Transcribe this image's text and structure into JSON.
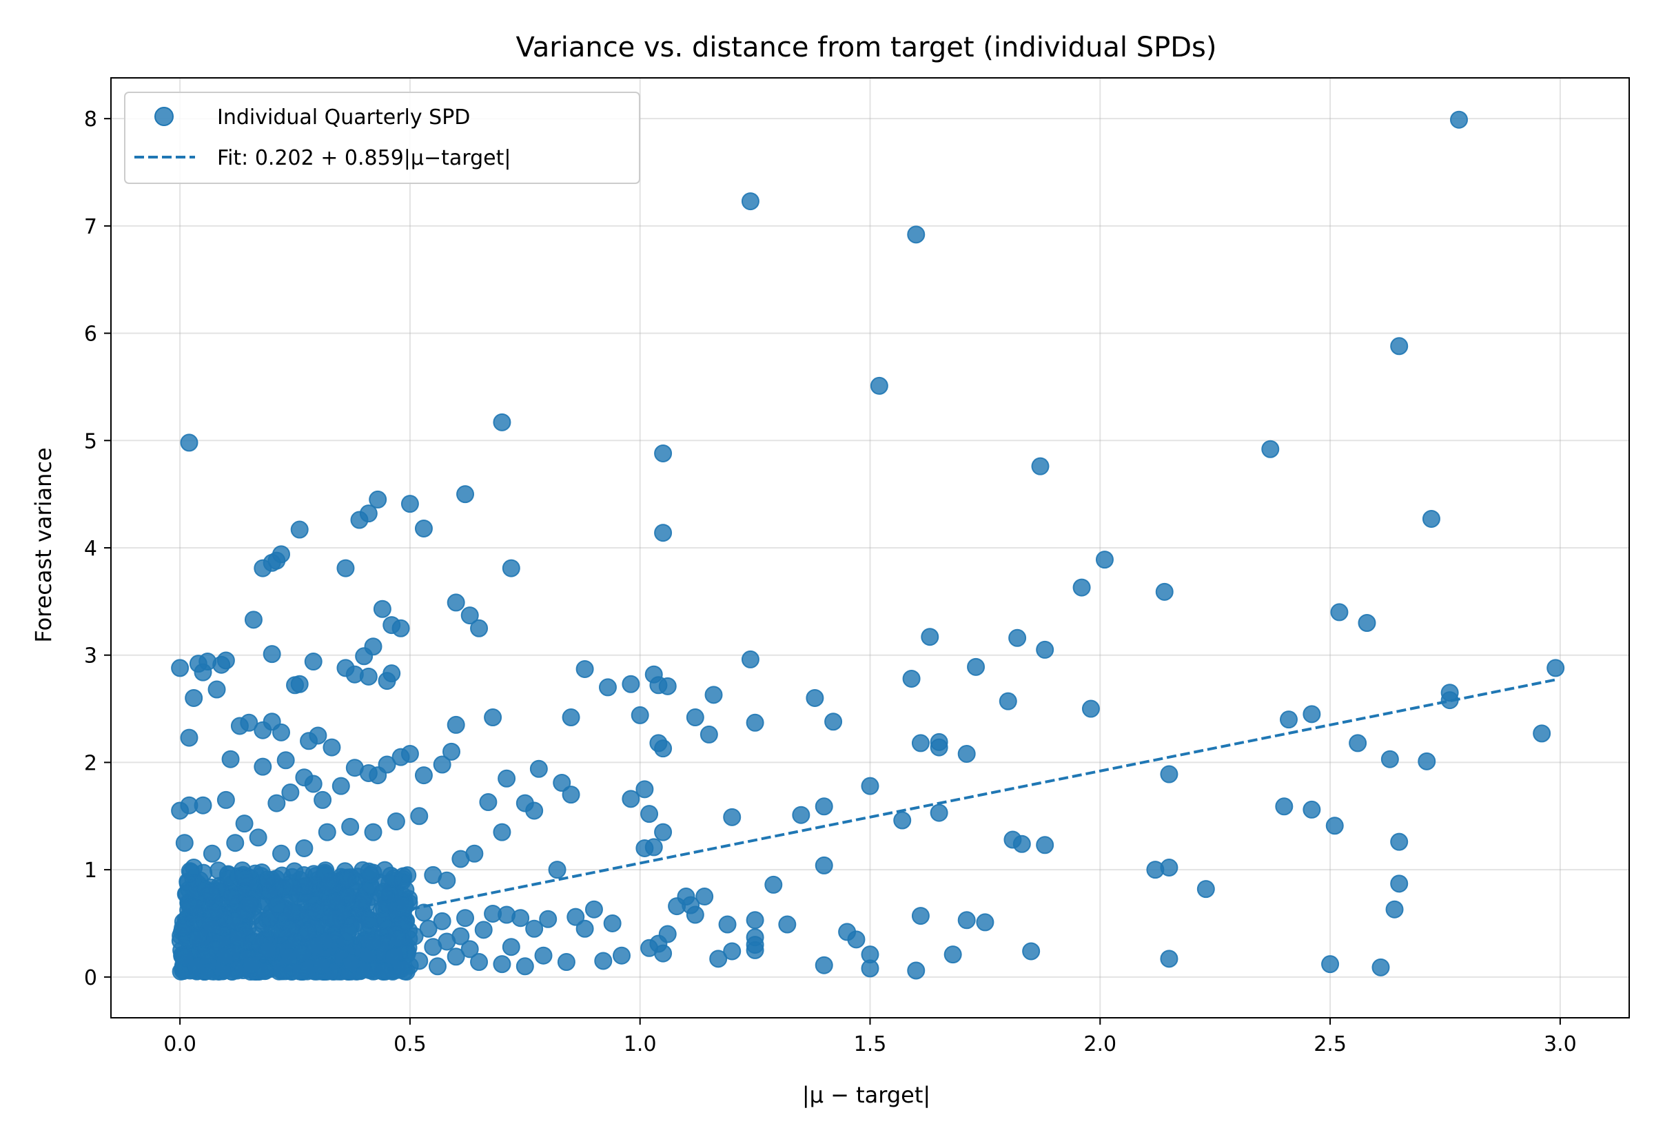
{
  "chart_data": {
    "type": "scatter",
    "title": "Variance vs. distance from target (individual SPDs)",
    "xlabel": "|μ − target|",
    "ylabel": "Forecast variance",
    "xlim": [
      -0.15,
      3.15
    ],
    "ylim": [
      -0.38,
      8.38
    ],
    "xticks": [
      0.0,
      0.5,
      1.0,
      1.5,
      2.0,
      2.5,
      3.0
    ],
    "xtick_labels": [
      "0.0",
      "0.5",
      "1.0",
      "1.5",
      "2.0",
      "2.5",
      "3.0"
    ],
    "yticks": [
      0,
      1,
      2,
      3,
      4,
      5,
      6,
      7,
      8
    ],
    "ytick_labels": [
      "0",
      "1",
      "2",
      "3",
      "4",
      "5",
      "6",
      "7",
      "8"
    ],
    "grid": true,
    "legend_position": "top-left",
    "point_color": "#1f77b4",
    "series": [
      {
        "name": "Individual Quarterly SPD",
        "kind": "scatter",
        "points": [
          [
            0.02,
            4.98
          ],
          [
            0.0,
            2.88
          ],
          [
            0.03,
            2.6
          ],
          [
            0.04,
            2.92
          ],
          [
            0.05,
            2.84
          ],
          [
            0.06,
            2.94
          ],
          [
            0.09,
            2.91
          ],
          [
            0.1,
            2.95
          ],
          [
            0.08,
            2.68
          ],
          [
            0.13,
            2.34
          ],
          [
            0.11,
            2.03
          ],
          [
            0.02,
            2.23
          ],
          [
            0.15,
            2.37
          ],
          [
            0.18,
            2.3
          ],
          [
            0.2,
            2.38
          ],
          [
            0.22,
            2.28
          ],
          [
            0.23,
            2.02
          ],
          [
            0.26,
            2.73
          ],
          [
            0.25,
            2.72
          ],
          [
            0.29,
            2.94
          ],
          [
            0.28,
            2.2
          ],
          [
            0.3,
            2.25
          ],
          [
            0.33,
            2.14
          ],
          [
            0.36,
            2.88
          ],
          [
            0.18,
            3.81
          ],
          [
            0.2,
            3.86
          ],
          [
            0.21,
            3.88
          ],
          [
            0.22,
            3.94
          ],
          [
            0.26,
            4.17
          ],
          [
            0.16,
            3.33
          ],
          [
            0.2,
            3.01
          ],
          [
            0.38,
            2.82
          ],
          [
            0.41,
            2.8
          ],
          [
            0.4,
            2.99
          ],
          [
            0.42,
            3.08
          ],
          [
            0.44,
            3.43
          ],
          [
            0.45,
            2.76
          ],
          [
            0.46,
            2.83
          ],
          [
            0.46,
            3.28
          ],
          [
            0.48,
            3.25
          ],
          [
            0.36,
            3.81
          ],
          [
            0.39,
            4.26
          ],
          [
            0.41,
            4.32
          ],
          [
            0.43,
            4.45
          ],
          [
            0.5,
            4.41
          ],
          [
            0.53,
            4.18
          ],
          [
            0.6,
            3.49
          ],
          [
            0.62,
            4.5
          ],
          [
            0.63,
            3.37
          ],
          [
            0.65,
            3.25
          ],
          [
            0.7,
            5.17
          ],
          [
            0.72,
            3.81
          ],
          [
            0.68,
            2.42
          ],
          [
            0.6,
            2.35
          ],
          [
            0.59,
            2.1
          ],
          [
            0.57,
            1.98
          ],
          [
            0.53,
            1.88
          ],
          [
            0.5,
            2.08
          ],
          [
            0.48,
            2.05
          ],
          [
            0.45,
            1.98
          ],
          [
            0.43,
            1.88
          ],
          [
            0.41,
            1.9
          ],
          [
            0.38,
            1.95
          ],
          [
            0.35,
            1.78
          ],
          [
            0.31,
            1.65
          ],
          [
            0.29,
            1.8
          ],
          [
            0.27,
            1.86
          ],
          [
            0.24,
            1.72
          ],
          [
            0.21,
            1.62
          ],
          [
            0.18,
            1.96
          ],
          [
            0.14,
            1.43
          ],
          [
            0.1,
            1.65
          ],
          [
            0.05,
            1.6
          ],
          [
            0.02,
            1.6
          ],
          [
            0.0,
            1.55
          ],
          [
            0.01,
            1.25
          ],
          [
            0.03,
            1.02
          ],
          [
            0.07,
            1.15
          ],
          [
            0.12,
            1.25
          ],
          [
            0.17,
            1.3
          ],
          [
            0.22,
            1.15
          ],
          [
            0.27,
            1.2
          ],
          [
            0.32,
            1.35
          ],
          [
            0.37,
            1.4
          ],
          [
            0.42,
            1.35
          ],
          [
            0.47,
            1.45
          ],
          [
            0.52,
            1.5
          ],
          [
            0.55,
            0.95
          ],
          [
            0.58,
            0.9
          ],
          [
            0.61,
            1.1
          ],
          [
            0.64,
            1.15
          ],
          [
            0.67,
            1.63
          ],
          [
            0.7,
            1.35
          ],
          [
            0.71,
            1.85
          ],
          [
            0.75,
            1.62
          ],
          [
            0.77,
            1.55
          ],
          [
            0.78,
            1.94
          ],
          [
            0.83,
            1.81
          ],
          [
            0.85,
            1.7
          ],
          [
            0.85,
            2.42
          ],
          [
            0.88,
            2.87
          ],
          [
            0.93,
            2.7
          ],
          [
            0.98,
            2.73
          ],
          [
            0.98,
            1.66
          ],
          [
            1.0,
            2.44
          ],
          [
            1.01,
            1.75
          ],
          [
            1.02,
            1.52
          ],
          [
            1.03,
            2.82
          ],
          [
            1.04,
            2.72
          ],
          [
            1.04,
            2.18
          ],
          [
            1.05,
            2.13
          ],
          [
            1.06,
            2.71
          ],
          [
            1.05,
            4.14
          ],
          [
            1.05,
            4.88
          ],
          [
            1.12,
            2.42
          ],
          [
            1.15,
            2.26
          ],
          [
            1.16,
            2.63
          ],
          [
            1.2,
            1.49
          ],
          [
            1.24,
            2.96
          ],
          [
            1.25,
            2.37
          ],
          [
            1.24,
            7.23
          ],
          [
            1.35,
            1.51
          ],
          [
            1.38,
            2.6
          ],
          [
            1.4,
            1.59
          ],
          [
            1.42,
            2.38
          ],
          [
            1.5,
            1.78
          ],
          [
            1.52,
            5.51
          ],
          [
            1.57,
            1.46
          ],
          [
            1.59,
            2.78
          ],
          [
            1.6,
            6.92
          ],
          [
            1.61,
            2.18
          ],
          [
            1.63,
            3.17
          ],
          [
            1.65,
            2.19
          ],
          [
            1.65,
            2.14
          ],
          [
            1.65,
            1.53
          ],
          [
            1.71,
            2.08
          ],
          [
            1.73,
            2.89
          ],
          [
            1.8,
            2.57
          ],
          [
            1.82,
            3.16
          ],
          [
            1.87,
            4.76
          ],
          [
            1.88,
            3.05
          ],
          [
            1.96,
            3.63
          ],
          [
            1.98,
            2.5
          ],
          [
            2.01,
            3.89
          ],
          [
            2.14,
            3.59
          ],
          [
            2.37,
            4.92
          ],
          [
            2.41,
            2.4
          ],
          [
            2.46,
            2.45
          ],
          [
            2.52,
            3.4
          ],
          [
            2.56,
            2.18
          ],
          [
            2.58,
            3.3
          ],
          [
            2.63,
            2.03
          ],
          [
            2.65,
            5.88
          ],
          [
            2.71,
            2.01
          ],
          [
            2.72,
            4.27
          ],
          [
            2.76,
            2.65
          ],
          [
            2.76,
            2.58
          ],
          [
            2.78,
            7.99
          ],
          [
            2.96,
            2.27
          ],
          [
            2.99,
            2.88
          ],
          [
            2.15,
            1.89
          ],
          [
            2.4,
            1.59
          ],
          [
            2.46,
            1.56
          ],
          [
            2.51,
            1.41
          ],
          [
            2.65,
            1.26
          ],
          [
            2.65,
            0.87
          ],
          [
            2.64,
            0.63
          ],
          [
            2.5,
            0.12
          ],
          [
            2.61,
            0.09
          ],
          [
            2.23,
            0.82
          ],
          [
            2.15,
            1.02
          ],
          [
            2.12,
            1.0
          ],
          [
            2.15,
            0.17
          ],
          [
            1.85,
            0.24
          ],
          [
            1.81,
            1.28
          ],
          [
            1.83,
            1.24
          ],
          [
            1.88,
            1.23
          ],
          [
            1.71,
            0.53
          ],
          [
            1.75,
            0.51
          ],
          [
            1.68,
            0.21
          ],
          [
            1.6,
            0.06
          ],
          [
            1.61,
            0.57
          ],
          [
            1.5,
            0.21
          ],
          [
            1.5,
            0.08
          ],
          [
            1.45,
            0.42
          ],
          [
            1.47,
            0.35
          ],
          [
            1.4,
            1.04
          ],
          [
            1.4,
            0.11
          ],
          [
            1.32,
            0.49
          ],
          [
            1.29,
            0.86
          ],
          [
            1.25,
            0.53
          ],
          [
            1.25,
            0.37
          ],
          [
            1.25,
            0.3
          ],
          [
            1.25,
            0.25
          ],
          [
            1.2,
            0.24
          ],
          [
            1.19,
            0.49
          ],
          [
            1.17,
            0.17
          ],
          [
            1.14,
            0.75
          ],
          [
            1.12,
            0.58
          ],
          [
            1.11,
            0.67
          ],
          [
            1.1,
            0.75
          ],
          [
            1.08,
            0.66
          ],
          [
            1.06,
            0.4
          ],
          [
            1.05,
            0.22
          ],
          [
            1.04,
            0.31
          ],
          [
            1.02,
            0.27
          ],
          [
            1.01,
            1.2
          ],
          [
            1.03,
            1.21
          ],
          [
            1.05,
            1.35
          ],
          [
            0.96,
            0.2
          ],
          [
            0.94,
            0.5
          ],
          [
            0.92,
            0.15
          ],
          [
            0.9,
            0.63
          ],
          [
            0.88,
            0.45
          ],
          [
            0.86,
            0.56
          ],
          [
            0.84,
            0.14
          ],
          [
            0.82,
            1.0
          ],
          [
            0.8,
            0.54
          ],
          [
            0.79,
            0.2
          ],
          [
            0.77,
            0.45
          ],
          [
            0.75,
            0.1
          ],
          [
            0.74,
            0.55
          ],
          [
            0.72,
            0.28
          ],
          [
            0.71,
            0.58
          ],
          [
            0.7,
            0.12
          ],
          [
            0.68,
            0.59
          ],
          [
            0.66,
            0.44
          ],
          [
            0.65,
            0.14
          ],
          [
            0.63,
            0.26
          ],
          [
            0.62,
            0.55
          ],
          [
            0.61,
            0.38
          ],
          [
            0.6,
            0.19
          ],
          [
            0.58,
            0.33
          ],
          [
            0.57,
            0.52
          ],
          [
            0.56,
            0.1
          ],
          [
            0.55,
            0.28
          ],
          [
            0.54,
            0.45
          ],
          [
            0.53,
            0.6
          ],
          [
            0.52,
            0.15
          ],
          [
            0.51,
            0.38
          ]
        ]
      },
      {
        "name": "Fit: 0.202 + 0.859|μ−target|",
        "kind": "dashed-line",
        "intercept": 0.202,
        "slope": 0.859,
        "x_range": [
          0.5,
          2.99
        ]
      }
    ],
    "dense_cluster": {
      "description_free": true,
      "x_range": [
        0.0,
        0.5
      ],
      "y_range": [
        0.05,
        1.0
      ],
      "count": 900
    }
  }
}
